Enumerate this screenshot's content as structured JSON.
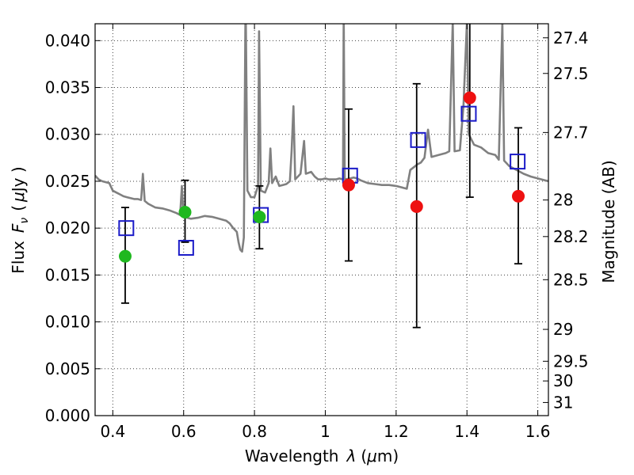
{
  "chart_data": {
    "type": "scatter",
    "xlabel": "Wavelength",
    "xlabel_symbol": "λ",
    "xlabel_unit_open": "(",
    "xlabel_unit_mu": "μ",
    "xlabel_unit_rest": "m)",
    "ylabel": "Flux",
    "ylabel_symbol": "F",
    "ylabel_subscript": "ν",
    "ylabel_unit_open": "(",
    "ylabel_unit_mu": "μ",
    "ylabel_unit_rest": "Jy )",
    "y2label": "Magnitude (AB)",
    "xlim": [
      0.35,
      1.63
    ],
    "ylim": [
      0.0,
      0.0418
    ],
    "grid": true,
    "x_ticks": [
      {
        "value": 0.4,
        "label": "0.4"
      },
      {
        "value": 0.6,
        "label": "0.6"
      },
      {
        "value": 0.8,
        "label": "0.8"
      },
      {
        "value": 1.0,
        "label": "1"
      },
      {
        "value": 1.2,
        "label": "1.2"
      },
      {
        "value": 1.4,
        "label": "1.4"
      },
      {
        "value": 1.6,
        "label": "1.6"
      }
    ],
    "y_ticks": [
      {
        "value": 0.0,
        "label": "0.000"
      },
      {
        "value": 0.005,
        "label": "0.005"
      },
      {
        "value": 0.01,
        "label": "0.010"
      },
      {
        "value": 0.015,
        "label": "0.015"
      },
      {
        "value": 0.02,
        "label": "0.020"
      },
      {
        "value": 0.025,
        "label": "0.025"
      },
      {
        "value": 0.03,
        "label": "0.030"
      },
      {
        "value": 0.035,
        "label": "0.035"
      },
      {
        "value": 0.04,
        "label": "0.040"
      }
    ],
    "y2_ticks": [
      {
        "label": "27.4",
        "flux": 0.0403
      },
      {
        "label": "27.5",
        "flux": 0.0365
      },
      {
        "label": "27.7",
        "flux": 0.0302
      },
      {
        "label": "28",
        "flux": 0.023
      },
      {
        "label": "28.2",
        "flux": 0.0191
      },
      {
        "label": "28.5",
        "flux": 0.0145
      },
      {
        "label": "29",
        "flux": 0.0092
      },
      {
        "label": "29.5",
        "flux": 0.0058
      },
      {
        "label": "30",
        "flux": 0.0037
      },
      {
        "label": "31",
        "flux": 0.0014
      }
    ],
    "colors": {
      "model": "#808080",
      "observed_green": "#1fb81f",
      "observed_red": "#ee1111",
      "model_box": "#1a1ac8",
      "errorbar": "#000000"
    },
    "model_spectrum": [
      [
        0.35,
        0.0256
      ],
      [
        0.36,
        0.0252
      ],
      [
        0.37,
        0.025
      ],
      [
        0.38,
        0.0249
      ],
      [
        0.39,
        0.0248
      ],
      [
        0.4,
        0.024
      ],
      [
        0.41,
        0.0238
      ],
      [
        0.42,
        0.0236
      ],
      [
        0.43,
        0.0234
      ],
      [
        0.44,
        0.0233
      ],
      [
        0.45,
        0.0232
      ],
      [
        0.46,
        0.0231
      ],
      [
        0.47,
        0.0231
      ],
      [
        0.48,
        0.023
      ],
      [
        0.485,
        0.0258
      ],
      [
        0.49,
        0.0229
      ],
      [
        0.5,
        0.0226
      ],
      [
        0.52,
        0.0222
      ],
      [
        0.54,
        0.0221
      ],
      [
        0.56,
        0.0219
      ],
      [
        0.58,
        0.0216
      ],
      [
        0.59,
        0.0214
      ],
      [
        0.595,
        0.0245
      ],
      [
        0.6,
        0.0212
      ],
      [
        0.62,
        0.021
      ],
      [
        0.64,
        0.0211
      ],
      [
        0.66,
        0.0213
      ],
      [
        0.68,
        0.0212
      ],
      [
        0.7,
        0.021
      ],
      [
        0.72,
        0.0208
      ],
      [
        0.73,
        0.0205
      ],
      [
        0.74,
        0.02
      ],
      [
        0.75,
        0.0196
      ],
      [
        0.755,
        0.0185
      ],
      [
        0.76,
        0.0177
      ],
      [
        0.765,
        0.0175
      ],
      [
        0.77,
        0.019
      ],
      [
        0.775,
        0.045
      ],
      [
        0.78,
        0.024
      ],
      [
        0.79,
        0.0233
      ],
      [
        0.8,
        0.0233
      ],
      [
        0.81,
        0.0245
      ],
      [
        0.813,
        0.041
      ],
      [
        0.818,
        0.024
      ],
      [
        0.83,
        0.0238
      ],
      [
        0.84,
        0.0248
      ],
      [
        0.845,
        0.0285
      ],
      [
        0.85,
        0.0248
      ],
      [
        0.86,
        0.0255
      ],
      [
        0.87,
        0.0245
      ],
      [
        0.88,
        0.0246
      ],
      [
        0.89,
        0.0247
      ],
      [
        0.9,
        0.025
      ],
      [
        0.905,
        0.0283
      ],
      [
        0.91,
        0.033
      ],
      [
        0.915,
        0.0252
      ],
      [
        0.93,
        0.0258
      ],
      [
        0.94,
        0.0293
      ],
      [
        0.945,
        0.0258
      ],
      [
        0.96,
        0.026
      ],
      [
        0.97,
        0.0255
      ],
      [
        0.98,
        0.0252
      ],
      [
        0.99,
        0.0252
      ],
      [
        1.0,
        0.0253
      ],
      [
        1.01,
        0.0252
      ],
      [
        1.02,
        0.0252
      ],
      [
        1.03,
        0.0252
      ],
      [
        1.04,
        0.0253
      ],
      [
        1.05,
        0.0252
      ],
      [
        1.052,
        0.043
      ],
      [
        1.055,
        0.0252
      ],
      [
        1.07,
        0.0253
      ],
      [
        1.08,
        0.0254
      ],
      [
        1.09,
        0.0253
      ],
      [
        1.1,
        0.0251
      ],
      [
        1.12,
        0.0248
      ],
      [
        1.14,
        0.0247
      ],
      [
        1.16,
        0.0246
      ],
      [
        1.18,
        0.0246
      ],
      [
        1.2,
        0.0245
      ],
      [
        1.22,
        0.0243
      ],
      [
        1.23,
        0.0242
      ],
      [
        1.24,
        0.0262
      ],
      [
        1.25,
        0.0265
      ],
      [
        1.26,
        0.0268
      ],
      [
        1.27,
        0.027
      ],
      [
        1.28,
        0.0275
      ],
      [
        1.29,
        0.0305
      ],
      [
        1.3,
        0.0276
      ],
      [
        1.32,
        0.0278
      ],
      [
        1.34,
        0.028
      ],
      [
        1.35,
        0.0282
      ],
      [
        1.36,
        0.042
      ],
      [
        1.365,
        0.0282
      ],
      [
        1.38,
        0.0283
      ],
      [
        1.39,
        0.033
      ],
      [
        1.4,
        0.042
      ],
      [
        1.405,
        0.03
      ],
      [
        1.42,
        0.0289
      ],
      [
        1.44,
        0.0286
      ],
      [
        1.46,
        0.028
      ],
      [
        1.48,
        0.0278
      ],
      [
        1.49,
        0.0273
      ],
      [
        1.5,
        0.042
      ],
      [
        1.505,
        0.0272
      ],
      [
        1.52,
        0.0266
      ],
      [
        1.54,
        0.0262
      ],
      [
        1.56,
        0.0258
      ],
      [
        1.58,
        0.0255
      ],
      [
        1.6,
        0.0253
      ],
      [
        1.62,
        0.0251
      ],
      [
        1.63,
        0.025
      ]
    ],
    "observed_points": [
      {
        "x": 0.435,
        "y": 0.017,
        "err_low": 0.012,
        "err_high": 0.0222,
        "color": "green"
      },
      {
        "x": 0.604,
        "y": 0.0217,
        "err_low": 0.0185,
        "err_high": 0.0251,
        "color": "green"
      },
      {
        "x": 0.814,
        "y": 0.0212,
        "err_low": 0.0178,
        "err_high": 0.0245,
        "color": "green"
      },
      {
        "x": 1.066,
        "y": 0.0246,
        "err_low": 0.0165,
        "err_high": 0.0327,
        "color": "red"
      },
      {
        "x": 1.258,
        "y": 0.0223,
        "err_low": 0.0094,
        "err_high": 0.0354,
        "color": "red"
      },
      {
        "x": 1.408,
        "y": 0.0339,
        "err_low": 0.0233,
        "err_high": 0.0445,
        "color": "red"
      },
      {
        "x": 1.545,
        "y": 0.0234,
        "err_low": 0.0162,
        "err_high": 0.0307,
        "color": "red"
      }
    ],
    "model_points": [
      {
        "x": 0.438,
        "y": 0.02
      },
      {
        "x": 0.607,
        "y": 0.0179
      },
      {
        "x": 0.818,
        "y": 0.0214
      },
      {
        "x": 1.07,
        "y": 0.0256
      },
      {
        "x": 1.262,
        "y": 0.0294
      },
      {
        "x": 1.405,
        "y": 0.0322
      },
      {
        "x": 1.543,
        "y": 0.0271
      }
    ]
  }
}
